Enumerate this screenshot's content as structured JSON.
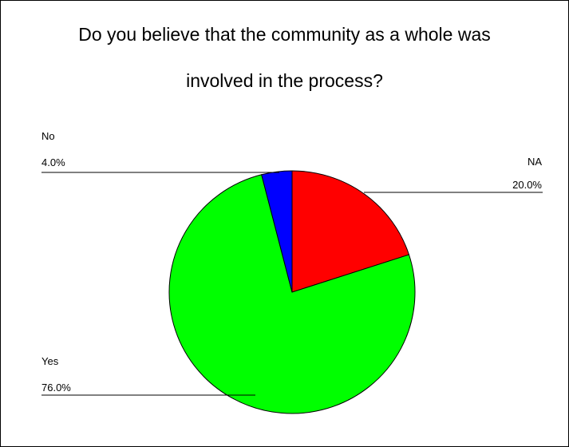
{
  "chart_data": {
    "type": "pie",
    "title_lines": [
      "Do you believe that the community as a whole was",
      "involved in the process?"
    ],
    "slices": [
      {
        "label": "NA",
        "value": 20.0,
        "value_text": "20.0%",
        "color": "#ff0000"
      },
      {
        "label": "Yes",
        "value": 76.0,
        "value_text": "76.0%",
        "color": "#00ff00"
      },
      {
        "label": "No",
        "value": 4.0,
        "value_text": "4.0%",
        "color": "#0000ff"
      }
    ],
    "start": "12 o'clock",
    "direction": "clockwise"
  }
}
